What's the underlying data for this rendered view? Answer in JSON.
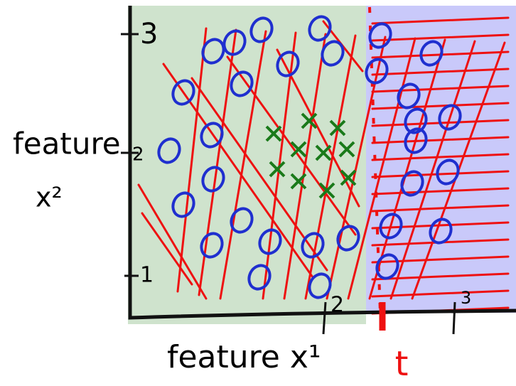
{
  "y_axis": {
    "label_word": "feature",
    "label_variable": "x²",
    "ticks": [
      "3",
      "2",
      "1"
    ]
  },
  "x_axis": {
    "label": "feature x¹",
    "ticks": [
      "2",
      "3"
    ]
  },
  "threshold": {
    "label": "t"
  }
}
